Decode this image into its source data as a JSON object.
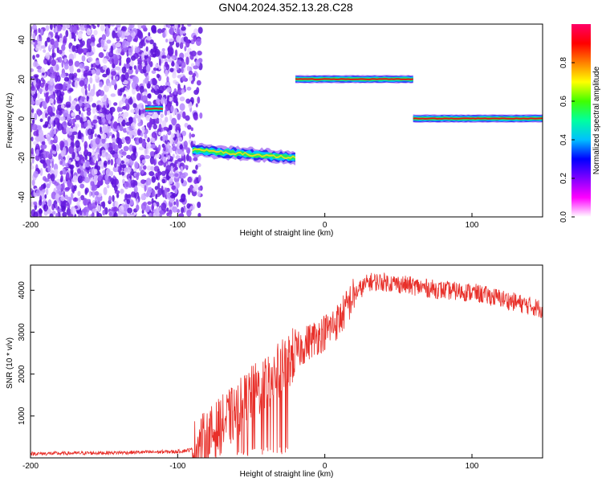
{
  "figure_title": "GN04.2024.352.13.28.C28",
  "colors": {
    "snr_line": "#e8302a",
    "noise_purple": "#6a1ee0",
    "colorbar_stops": [
      "#ffffff",
      "#ff00ff",
      "#8000ff",
      "#0000ff",
      "#00c0ff",
      "#00ffa0",
      "#40ff00",
      "#ffff00",
      "#ff8000",
      "#ff0000",
      "#ff0066"
    ]
  },
  "chart_data": [
    {
      "type": "heatmap",
      "xlabel": "Height of straight line (km)",
      "ylabel": "Frequency (Hz)",
      "xlim": [
        -200,
        148
      ],
      "ylim": [
        -50,
        48
      ],
      "x_ticks": [
        -200,
        -100,
        0,
        100
      ],
      "y_ticks": [
        -40,
        -20,
        0,
        20,
        40
      ],
      "colorbar": {
        "label": "Normalized spectral amplitude",
        "range": [
          0,
          1
        ],
        "ticks": [
          "0.0",
          "0.2",
          "0.4",
          "0.6",
          "0.8"
        ],
        "tick_values": [
          0.0,
          0.2,
          0.4,
          0.6,
          0.8
        ]
      },
      "noise_region": {
        "x_range": [
          -200,
          -84
        ],
        "y_range": [
          -50,
          48
        ]
      },
      "features": [
        {
          "x_start": -122,
          "x_end": -110,
          "frequency": 5
        },
        {
          "x_start": -90,
          "x_end": -20,
          "frequency_start": -16,
          "frequency_end": -20
        },
        {
          "x_start": -20,
          "x_end": 60,
          "frequency": 20
        },
        {
          "x_start": 60,
          "x_end": 148,
          "frequency": 0
        }
      ]
    },
    {
      "type": "line",
      "xlabel": "Height of straight line (km)",
      "ylabel": "SNR (10 * v/v)",
      "xlim": [
        -200,
        148
      ],
      "ylim": [
        0,
        4600
      ],
      "x_ticks": [
        -200,
        -100,
        0,
        100
      ],
      "y_ticks": [
        1000,
        2000,
        3000,
        4000
      ],
      "trend": {
        "x": [
          -200,
          -150,
          -100,
          -90,
          -80,
          -70,
          -60,
          -50,
          -40,
          -30,
          -20,
          -10,
          0,
          10,
          20,
          30,
          40,
          60,
          80,
          100,
          120,
          148
        ],
        "y": [
          100,
          120,
          150,
          200,
          450,
          800,
          1100,
          1500,
          1800,
          2100,
          2500,
          2800,
          3000,
          3300,
          3900,
          4200,
          4200,
          4100,
          4000,
          3950,
          3800,
          3550
        ]
      }
    }
  ]
}
